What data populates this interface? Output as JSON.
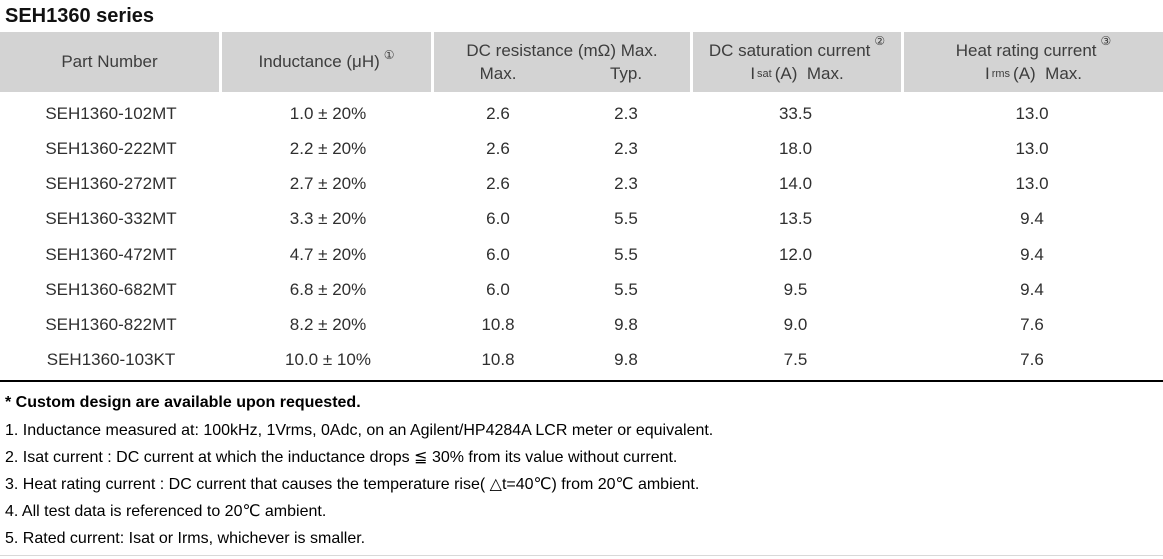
{
  "title": "SEH1360 series",
  "colors": {
    "header_bg": "#d3d3d3",
    "header_text": "#3d3d3d",
    "body_text": "#2f2f2f",
    "divider": "#000000"
  },
  "table": {
    "header": {
      "part_number": "Part Number",
      "inductance_label": "Inductance (μH)",
      "inductance_ref": "①",
      "dc_resistance_label": "DC resistance (mΩ) Max.",
      "dc_resistance_max": "Max.",
      "dc_resistance_typ": "Typ.",
      "dc_saturation_label": "DC saturation current",
      "dc_saturation_ref": "②",
      "dc_saturation_symbol": "I",
      "dc_saturation_subscript": "sat",
      "dc_saturation_unit": "(A)  Max.",
      "heat_rating_label": "Heat rating current",
      "heat_rating_ref": "③",
      "heat_rating_symbol": "I",
      "heat_rating_subscript": "rms",
      "heat_rating_unit": "(A)  Max."
    },
    "rows": [
      {
        "part_number": "SEH1360-102MT",
        "inductance": "1.0 ± 20%",
        "resistance_max": "2.6",
        "resistance_typ": "2.3",
        "isat_max": "33.5",
        "irms_max": "13.0"
      },
      {
        "part_number": "SEH1360-222MT",
        "inductance": "2.2 ± 20%",
        "resistance_max": "2.6",
        "resistance_typ": "2.3",
        "isat_max": "18.0",
        "irms_max": "13.0"
      },
      {
        "part_number": "SEH1360-272MT",
        "inductance": "2.7 ± 20%",
        "resistance_max": "2.6",
        "resistance_typ": "2.3",
        "isat_max": "14.0",
        "irms_max": "13.0"
      },
      {
        "part_number": "SEH1360-332MT",
        "inductance": "3.3 ± 20%",
        "resistance_max": "6.0",
        "resistance_typ": "5.5",
        "isat_max": "13.5",
        "irms_max": "9.4"
      },
      {
        "part_number": "SEH1360-472MT",
        "inductance": "4.7 ± 20%",
        "resistance_max": "6.0",
        "resistance_typ": "5.5",
        "isat_max": "12.0",
        "irms_max": "9.4"
      },
      {
        "part_number": "SEH1360-682MT",
        "inductance": "6.8 ± 20%",
        "resistance_max": "6.0",
        "resistance_typ": "5.5",
        "isat_max": "9.5",
        "irms_max": "9.4"
      },
      {
        "part_number": "SEH1360-822MT",
        "inductance": "8.2 ± 20%",
        "resistance_max": "10.8",
        "resistance_typ": "9.8",
        "isat_max": "9.0",
        "irms_max": "7.6"
      },
      {
        "part_number": "SEH1360-103KT",
        "inductance": "10.0 ± 10%",
        "resistance_max": "10.8",
        "resistance_typ": "9.8",
        "isat_max": "7.5",
        "irms_max": "7.6"
      }
    ]
  },
  "footnotes": {
    "custom_design": "* Custom design are available upon requested.",
    "notes": [
      "1. Inductance measured at: 100kHz, 1Vrms, 0Adc, on an Agilent/HP4284A LCR meter or equivalent.",
      "2. Isat current : DC current at which the inductance drops ≦ 30% from its value without current.",
      "3. Heat rating current : DC current that causes the temperature rise( △t=40℃) from 20℃ ambient.",
      "4. All test data is referenced to 20℃ ambient.",
      "5. Rated current: Isat or Irms, whichever is smaller."
    ]
  }
}
